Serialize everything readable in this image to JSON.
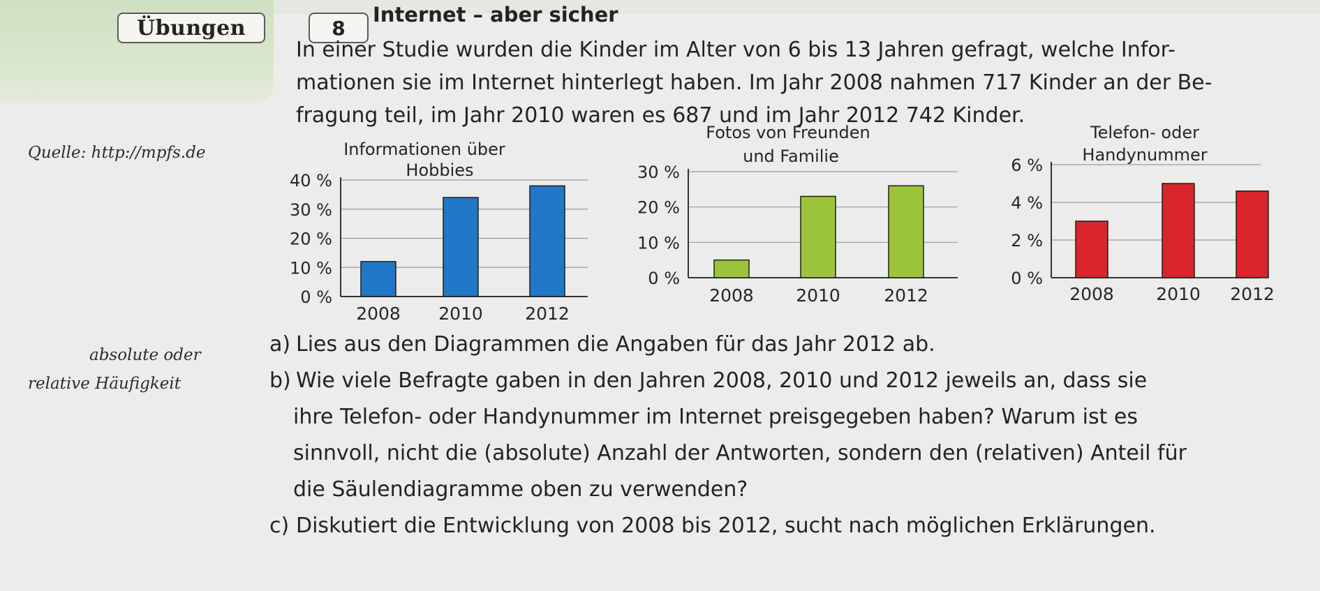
{
  "header": {
    "section_badge": "Übungen",
    "exercise_number": "8",
    "exercise_title": "Internet – aber sicher"
  },
  "intro_lines": [
    "In einer Studie wurden die Kinder im Alter von 6 bis 13 Jahren gefragt, welche Infor-",
    "mationen sie im Internet hinterlegt haben. Im Jahr 2008 nahmen 717 Kinder an der Be-",
    "fragung teil, im Jahr 2010 waren es 687 und im Jahr 2012 742 Kinder."
  ],
  "margin_notes": {
    "source": "Quelle: http://mpfs.de",
    "hint_line1": "absolute oder",
    "hint_line2": "relative Häufigkeit"
  },
  "chart_data": [
    {
      "type": "bar",
      "title_lines": [
        "Informationen über",
        "Hobbies"
      ],
      "categories": [
        "2008",
        "2010",
        "2012"
      ],
      "values": [
        12,
        34,
        38
      ],
      "ylim": [
        0,
        40
      ],
      "yticks": [
        0,
        10,
        20,
        30,
        40
      ],
      "ytick_labels": [
        "0 %",
        "10 %",
        "20 %",
        "30 %",
        "40 %"
      ],
      "color": "#1f78c8"
    },
    {
      "type": "bar",
      "title_lines": [
        "Fotos von Freunden",
        "und Familie"
      ],
      "categories": [
        "2008",
        "2010",
        "2012"
      ],
      "values": [
        5,
        23,
        26
      ],
      "ylim": [
        0,
        30
      ],
      "yticks": [
        0,
        10,
        20,
        30
      ],
      "ytick_labels": [
        "0 %",
        "10 %",
        "20 %",
        "30 %"
      ],
      "color": "#9cc43a"
    },
    {
      "type": "bar",
      "title_lines": [
        "Telefon- oder",
        "Handynummer"
      ],
      "categories": [
        "2008",
        "2010",
        "2012"
      ],
      "values": [
        3,
        5,
        4.6
      ],
      "ylim": [
        0,
        6
      ],
      "yticks": [
        0,
        2,
        4,
        6
      ],
      "ytick_labels": [
        "0 %",
        "2 %",
        "4 %",
        "6 %"
      ],
      "color": "#d9262c"
    }
  ],
  "tasks": [
    {
      "letter": "a)",
      "lines": [
        "Lies aus den Diagrammen die Angaben für das Jahr 2012 ab."
      ]
    },
    {
      "letter": "b)",
      "lines": [
        "Wie viele Befragte gaben in den Jahren 2008, 2010 und 2012 jeweils an, dass sie",
        "ihre Telefon- oder Handynummer im Internet preisgegeben haben? Warum ist es",
        "sinnvoll, nicht die (absolute) Anzahl der Antworten, sondern den (relativen) Anteil für",
        "die Säulendiagramme oben zu verwenden?"
      ]
    },
    {
      "letter": "c)",
      "lines": [
        "Diskutiert die Entwicklung von 2008 bis 2012, sucht nach möglichen Erklärungen."
      ]
    }
  ]
}
